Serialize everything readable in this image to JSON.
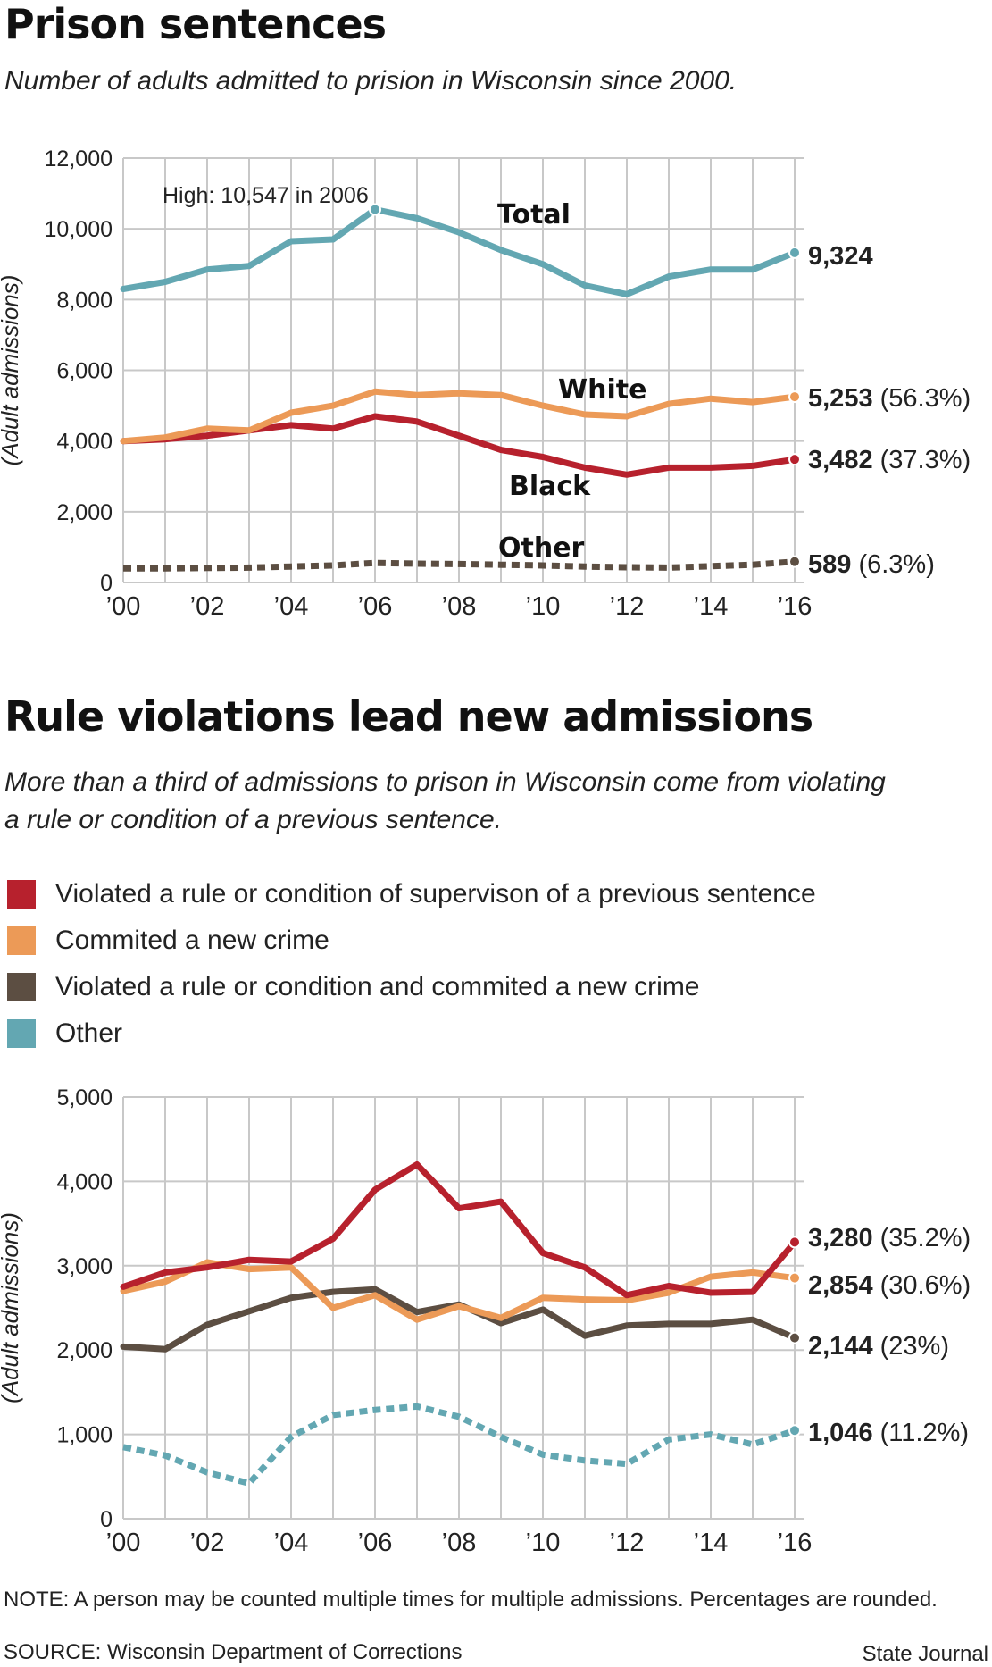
{
  "titles": {
    "chart1": "Prison sentences",
    "chart1_sub": "Number of adults admitted to prision in Wisconsin since 2000.",
    "chart2": "Rule violations lead new admissions",
    "chart2_sub": "More than a third of admissions to prison in Wisconsin come from violating a rule or condition of a previous sentence."
  },
  "legend": [
    {
      "label": "Violated a rule or condition of supervison of a previous sentence",
      "color": "#b7212d"
    },
    {
      "label": "Commited a new crime",
      "color": "#ec9a57"
    },
    {
      "label": "Violated a rule or condition and commited a new crime",
      "color": "#5c4e42"
    },
    {
      "label": "Other",
      "color": "#63a7b2"
    }
  ],
  "footer": {
    "note": "NOTE: A person may be counted multiple times for multiple admissions. Percentages are rounded.",
    "source": "SOURCE: Wisconsin Department of Corrections",
    "credit": "State Journal"
  },
  "chart_data": [
    {
      "type": "line",
      "title": "Prison sentences",
      "ylabel": "(Adult admissions)",
      "ylim": [
        0,
        12000
      ],
      "yticks": [
        0,
        2000,
        4000,
        6000,
        8000,
        10000,
        12000
      ],
      "ytick_labels": [
        "0",
        "2,000",
        "4,000",
        "6,000",
        "8,000",
        "10,000",
        "12,000"
      ],
      "x": [
        2000,
        2001,
        2002,
        2003,
        2004,
        2005,
        2006,
        2007,
        2008,
        2009,
        2010,
        2011,
        2012,
        2013,
        2014,
        2015,
        2016
      ],
      "xtick_labels": [
        "’00",
        "’02",
        "’04",
        "’06",
        "’08",
        "’10",
        "’12",
        "’14",
        "’16"
      ],
      "annotation": "High: 10,547 in 2006",
      "series": [
        {
          "name": "Total",
          "color": "#63a7b2",
          "dashed": false,
          "values": [
            8300,
            8500,
            8850,
            8950,
            9650,
            9700,
            10547,
            10300,
            9900,
            9400,
            9000,
            8400,
            8150,
            8650,
            8850,
            8850,
            9324
          ],
          "end_value": "9,324",
          "end_pct": ""
        },
        {
          "name": "White",
          "color": "#ec9a57",
          "dashed": false,
          "values": [
            4000,
            4100,
            4350,
            4300,
            4800,
            5000,
            5400,
            5300,
            5350,
            5300,
            5000,
            4750,
            4700,
            5050,
            5200,
            5100,
            5253
          ],
          "end_value": "5,253",
          "end_pct": "(56.3%)"
        },
        {
          "name": "Black",
          "color": "#b7212d",
          "dashed": false,
          "values": [
            4000,
            4050,
            4150,
            4300,
            4450,
            4350,
            4700,
            4550,
            4150,
            3750,
            3550,
            3250,
            3050,
            3250,
            3250,
            3300,
            3482
          ],
          "end_value": "3,482",
          "end_pct": "(37.3%)"
        },
        {
          "name": "Other",
          "color": "#5c4e42",
          "dashed": true,
          "values": [
            400,
            400,
            410,
            420,
            450,
            480,
            550,
            530,
            520,
            500,
            480,
            450,
            430,
            420,
            460,
            500,
            589
          ],
          "end_value": "589",
          "end_pct": "(6.3%)"
        }
      ]
    },
    {
      "type": "line",
      "title": "Rule violations lead new admissions",
      "ylabel": "(Adult admissions)",
      "ylim": [
        0,
        5000
      ],
      "yticks": [
        0,
        1000,
        2000,
        3000,
        4000,
        5000
      ],
      "ytick_labels": [
        "0",
        "1,000",
        "2,000",
        "3,000",
        "4,000",
        "5,000"
      ],
      "x": [
        2000,
        2001,
        2002,
        2003,
        2004,
        2005,
        2006,
        2007,
        2008,
        2009,
        2010,
        2011,
        2012,
        2013,
        2014,
        2015,
        2016
      ],
      "xtick_labels": [
        "’00",
        "’02",
        "’04",
        "’06",
        "’08",
        "’10",
        "’12",
        "’14",
        "’16"
      ],
      "series": [
        {
          "name": "Violated a rule or condition of supervison of a previous sentence",
          "color": "#b7212d",
          "dashed": false,
          "values": [
            2750,
            2920,
            2980,
            3070,
            3050,
            3320,
            3900,
            4200,
            3680,
            3760,
            3150,
            2980,
            2650,
            2760,
            2680,
            2690,
            3280
          ],
          "end_value": "3,280",
          "end_pct": "(35.2%)"
        },
        {
          "name": "Commited a new crime",
          "color": "#ec9a57",
          "dashed": false,
          "values": [
            2700,
            2810,
            3040,
            2960,
            2980,
            2500,
            2650,
            2360,
            2520,
            2380,
            2620,
            2600,
            2590,
            2680,
            2870,
            2920,
            2854
          ],
          "end_value": "2,854",
          "end_pct": "(30.6%)"
        },
        {
          "name": "Violated a rule or condition and commited a new crime",
          "color": "#5c4e42",
          "dashed": false,
          "values": [
            2040,
            2010,
            2300,
            2460,
            2620,
            2690,
            2720,
            2450,
            2540,
            2320,
            2480,
            2170,
            2290,
            2310,
            2310,
            2360,
            2144
          ],
          "end_value": "2,144",
          "end_pct": "(23%)"
        },
        {
          "name": "Other",
          "color": "#63a7b2",
          "dashed": true,
          "values": [
            850,
            750,
            550,
            420,
            970,
            1230,
            1290,
            1330,
            1210,
            970,
            760,
            690,
            650,
            940,
            1000,
            880,
            1046
          ],
          "end_value": "1,046",
          "end_pct": "(11.2%)"
        }
      ]
    }
  ]
}
